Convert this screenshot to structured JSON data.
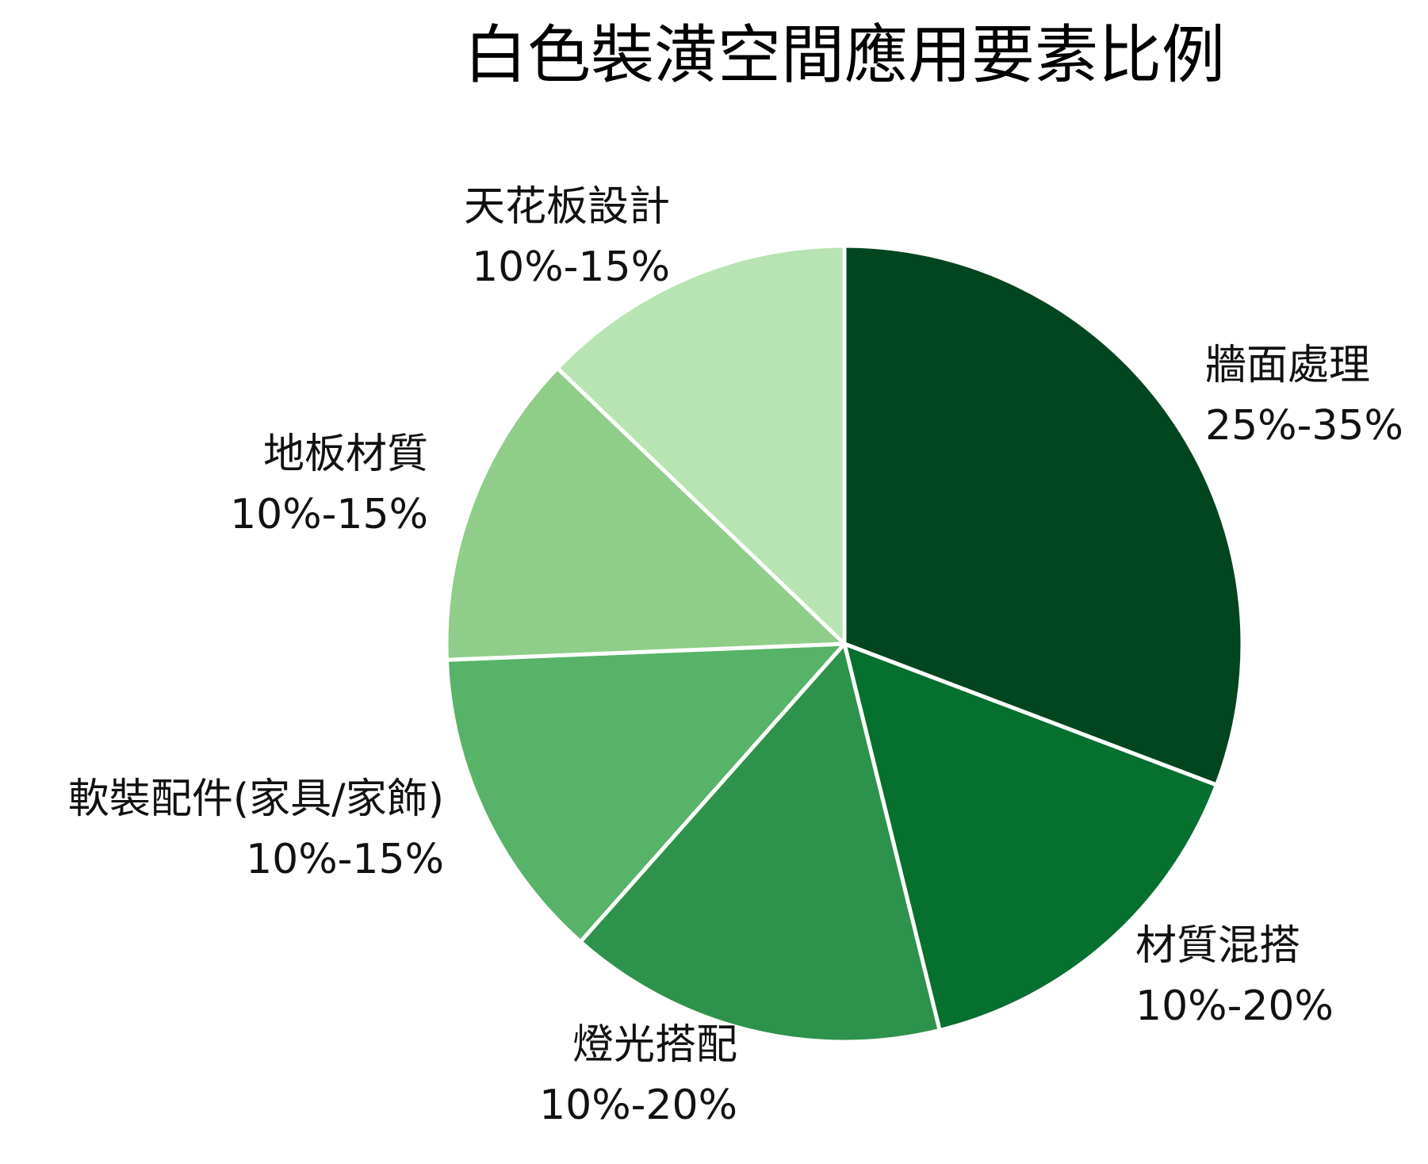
{
  "chart_data": {
    "type": "pie",
    "title": "白色裝潢空間應用要素比例",
    "start": "12 o'clock, clockwise",
    "slices": [
      {
        "name": "牆面處理",
        "range_text": "25%-35%",
        "value": 30,
        "color": "#02461f"
      },
      {
        "name": "材質混搭",
        "range_text": "10%-20%",
        "value": 15,
        "color": "#06702e"
      },
      {
        "name": "燈光搭配",
        "range_text": "10%-20%",
        "value": 15,
        "color": "#2d924b"
      },
      {
        "name": "軟裝配件(家具/家飾)",
        "range_text": "10%-15%",
        "value": 12.5,
        "color": "#56b367"
      },
      {
        "name": "地板材質",
        "range_text": "10%-15%",
        "value": 12.5,
        "color": "#8ece88"
      },
      {
        "name": "天花板設計",
        "range_text": "10%-15%",
        "value": 12.5,
        "color": "#b8e3b2"
      }
    ]
  }
}
